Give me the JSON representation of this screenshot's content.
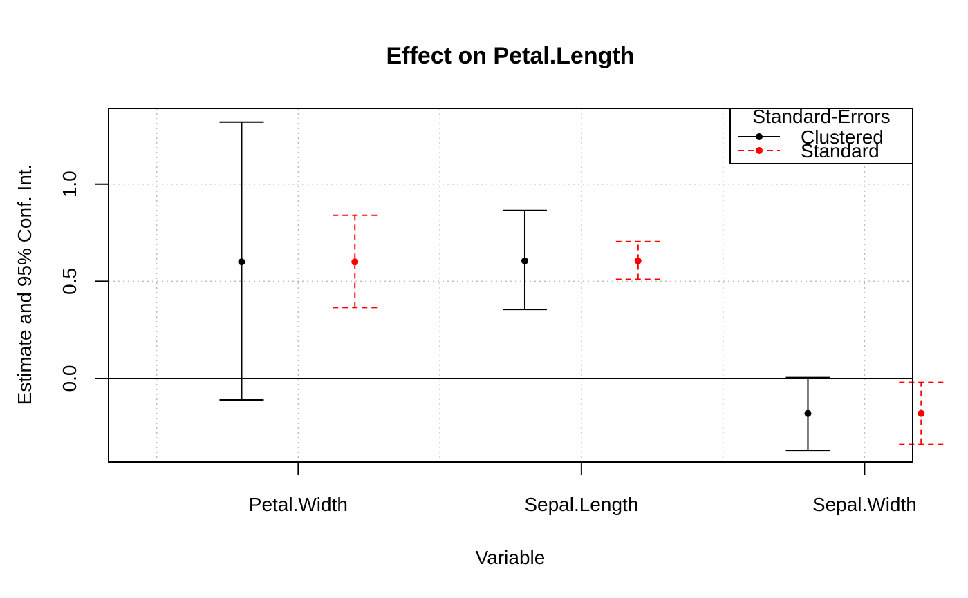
{
  "chart_data": {
    "type": "errorbar",
    "title": "Effect on Petal.Length",
    "xlabel": "Variable",
    "ylabel": "Estimate and 95% Conf. Int.",
    "categories": [
      "Petal.Width",
      "Sepal.Length",
      "Sepal.Width"
    ],
    "y_ticks": [
      0.0,
      0.5,
      1.0
    ],
    "y_tick_labels": [
      "0.0",
      "0.5",
      "1.0"
    ],
    "ylim": [
      -0.43,
      1.39
    ],
    "xlim": [
      0.33,
      3.17
    ],
    "grid": true,
    "reference_line_y": 0,
    "legend": {
      "title": "Standard-Errors",
      "placement": "top-right"
    },
    "series": [
      {
        "name": "Clustered",
        "color": "#000000",
        "line_style": "solid",
        "x_offset": -0.2,
        "estimates": [
          0.6,
          0.605,
          -0.18
        ],
        "ci_low": [
          -0.11,
          0.355,
          -0.37
        ],
        "ci_high": [
          1.32,
          0.865,
          0.005
        ]
      },
      {
        "name": "Standard",
        "color": "#ff0000",
        "line_style": "dashed",
        "x_offset": 0.2,
        "estimates": [
          0.6,
          0.605,
          -0.18
        ],
        "ci_low": [
          0.365,
          0.51,
          -0.34
        ],
        "ci_high": [
          0.84,
          0.705,
          -0.02
        ]
      }
    ]
  }
}
